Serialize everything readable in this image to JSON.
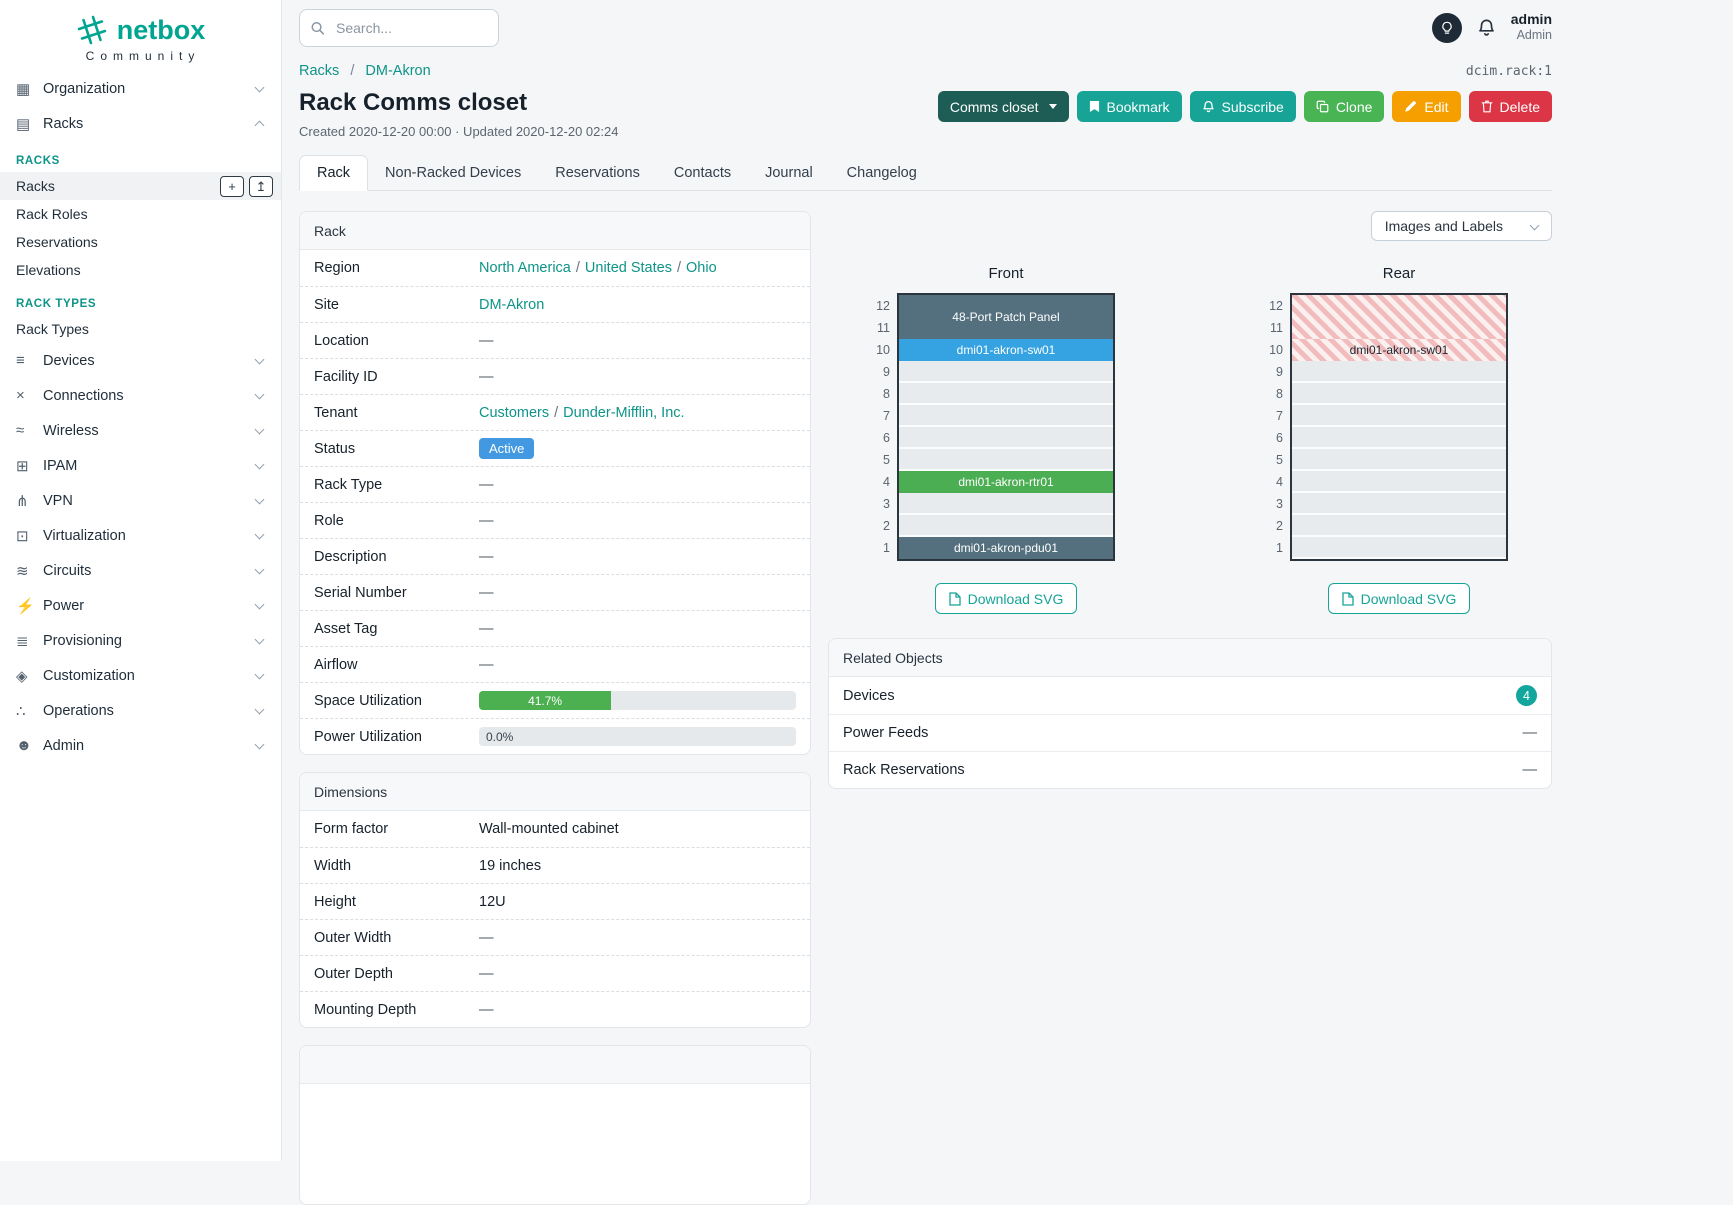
{
  "misc": {
    "slash": "/"
  },
  "colors": {
    "brand_teal": "#00a591",
    "link_teal": "#0e9488",
    "button_teal": "#17a497",
    "button_dark_teal": "#1d5d56",
    "button_green": "#48b453",
    "button_orange": "#f59f00",
    "button_red": "#dc3545",
    "status_blue": "#4299e1",
    "progress_green": "#4caf50",
    "device_slate": "#54707e",
    "device_blue": "#35a2e2",
    "device_green": "#4cae52",
    "hatch_pink": "#f3bcbc",
    "badge_teal": "#12a69c"
  },
  "icons": {
    "organization": "▦",
    "racks": "▤",
    "devices": "≡",
    "connections": "×",
    "wireless": "≈",
    "ipam": "⊞",
    "vpn": "⋔",
    "virtualization": "⊡",
    "circuits": "≋",
    "power": "⚡",
    "provisioning": "≣",
    "customization": "◈",
    "operations": "∴",
    "admin": "☻",
    "add": "+",
    "import": "↥"
  },
  "brand": {
    "name": "netbox",
    "tagline": "Community"
  },
  "topbar": {
    "search_placeholder": "Search...",
    "username": "admin",
    "role": "Admin"
  },
  "sidebar": {
    "top_items": [
      {
        "label": "Organization"
      },
      {
        "label": "Racks"
      }
    ],
    "groups": [
      {
        "header": "RACKS",
        "items": [
          "Racks",
          "Rack Roles",
          "Reservations",
          "Elevations"
        ]
      },
      {
        "header": "RACK TYPES",
        "items": [
          "Rack Types"
        ]
      }
    ],
    "bottom_items": [
      {
        "label": "Devices"
      },
      {
        "label": "Connections"
      },
      {
        "label": "Wireless"
      },
      {
        "label": "IPAM"
      },
      {
        "label": "VPN"
      },
      {
        "label": "Virtualization"
      },
      {
        "label": "Circuits"
      },
      {
        "label": "Power"
      },
      {
        "label": "Provisioning"
      },
      {
        "label": "Customization"
      },
      {
        "label": "Operations"
      },
      {
        "label": "Admin"
      }
    ]
  },
  "breadcrumb": {
    "items": [
      "Racks",
      "DM-Akron"
    ],
    "object_id": "dcim.rack:1"
  },
  "header": {
    "title": "Rack Comms closet",
    "meta": "Created 2020-12-20 00:00 · Updated 2020-12-20 02:24",
    "actions": {
      "context": "Comms closet",
      "bookmark": "Bookmark",
      "subscribe": "Subscribe",
      "clone": "Clone",
      "edit": "Edit",
      "delete": "Delete"
    }
  },
  "tabs": [
    {
      "label": "Rack",
      "active": true
    },
    {
      "label": "Non-Racked Devices",
      "active": false
    },
    {
      "label": "Reservations",
      "active": false
    },
    {
      "label": "Contacts",
      "active": false
    },
    {
      "label": "Journal",
      "active": false
    },
    {
      "label": "Changelog",
      "active": false
    }
  ],
  "rack_card": {
    "title": "Rack",
    "region": {
      "label": "Region",
      "links": [
        "North America",
        "United States",
        "Ohio"
      ]
    },
    "site": {
      "label": "Site",
      "link": "DM-Akron"
    },
    "location": {
      "label": "Location",
      "value": "—"
    },
    "facility_id": {
      "label": "Facility ID",
      "value": "—"
    },
    "tenant": {
      "label": "Tenant",
      "links": [
        "Customers",
        "Dunder-Mifflin, Inc."
      ]
    },
    "status": {
      "label": "Status",
      "badge": "Active"
    },
    "rack_type": {
      "label": "Rack Type",
      "value": "—"
    },
    "role": {
      "label": "Role",
      "value": "—"
    },
    "description": {
      "label": "Description",
      "value": "—"
    },
    "serial_number": {
      "label": "Serial Number",
      "value": "—"
    },
    "asset_tag": {
      "label": "Asset Tag",
      "value": "—"
    },
    "airflow": {
      "label": "Airflow",
      "value": "—"
    },
    "space_utilization": {
      "label": "Space Utilization",
      "percent": 41.7,
      "text": "41.7%"
    },
    "power_utilization": {
      "label": "Power Utilization",
      "percent": 0,
      "text": "0.0%"
    }
  },
  "dimensions_card": {
    "title": "Dimensions",
    "form_factor": {
      "label": "Form factor",
      "value": "Wall-mounted cabinet"
    },
    "width": {
      "label": "Width",
      "value": "19 inches"
    },
    "height": {
      "label": "Height",
      "value": "12U"
    },
    "outer_width": {
      "label": "Outer Width",
      "value": "—"
    },
    "outer_depth": {
      "label": "Outer Depth",
      "value": "—"
    },
    "mounting_depth": {
      "label": "Mounting Depth",
      "value": "—"
    }
  },
  "elevations": {
    "selector_label": "Images and Labels",
    "download_label": "Download SVG",
    "front": {
      "title": "Front",
      "units_total": 12,
      "devices": [
        {
          "top_unit": 12,
          "u_height": 2,
          "label": "48-Port Patch Panel",
          "style": "slate"
        },
        {
          "top_unit": 10,
          "u_height": 1,
          "label": "dmi01-akron-sw01",
          "style": "blue"
        },
        {
          "top_unit": 4,
          "u_height": 1,
          "label": "dmi01-akron-rtr01",
          "style": "green"
        },
        {
          "top_unit": 1,
          "u_height": 1,
          "label": "dmi01-akron-pdu01",
          "style": "slate"
        }
      ]
    },
    "rear": {
      "title": "Rear",
      "units_total": 12,
      "devices": [
        {
          "top_unit": 12,
          "u_height": 2,
          "label": "",
          "style": "hatched"
        },
        {
          "top_unit": 10,
          "u_height": 1,
          "label": "dmi01-akron-sw01",
          "style": "hatched"
        }
      ]
    }
  },
  "related_card": {
    "title": "Related Objects",
    "rows": [
      {
        "label": "Devices",
        "count": "4"
      },
      {
        "label": "Power Feeds",
        "value": "—"
      },
      {
        "label": "Rack Reservations",
        "value": "—"
      }
    ]
  }
}
